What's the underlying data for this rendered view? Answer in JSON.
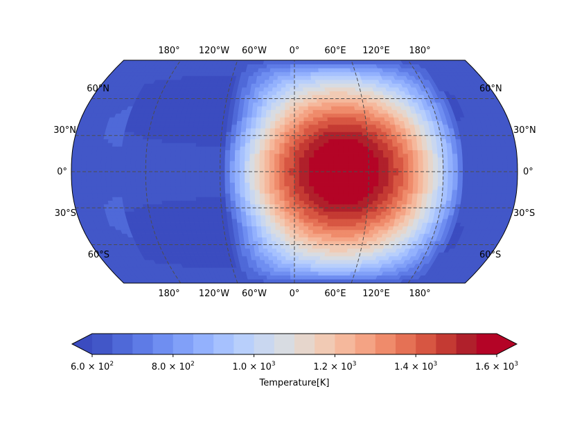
{
  "chart_data": {
    "type": "heatmap",
    "projection": "Robinson",
    "title": "",
    "colormap": "coolwarm",
    "grid": true,
    "top_lon_labels": [
      "180°",
      "120°W",
      "60°W",
      "0°",
      "60°E",
      "120°E",
      "180°"
    ],
    "bottom_lon_labels": [
      "180°",
      "120°W",
      "60°W",
      "0°",
      "60°E",
      "120°E",
      "180°"
    ],
    "left_lat_labels": [
      "60°N",
      "30°N",
      "0°",
      "30°S",
      "60°S"
    ],
    "right_lat_labels": [
      "60°N",
      "30°N",
      "0°",
      "30°S",
      "60°S"
    ],
    "field": {
      "hotspot_center_lon": 40,
      "hotspot_center_lat": 0,
      "min_value": 600,
      "max_value": 1600,
      "units": "K"
    },
    "colorbar": {
      "label": "Temperature[K]",
      "range": [
        600,
        1600
      ],
      "extend": "both",
      "n_levels": 20,
      "ticks": [
        {
          "value": 600,
          "mant": "6.0",
          "exp": "2"
        },
        {
          "value": 800,
          "mant": "8.0",
          "exp": "2"
        },
        {
          "value": 1000,
          "mant": "1.0",
          "exp": "3"
        },
        {
          "value": 1200,
          "mant": "1.2",
          "exp": "3"
        },
        {
          "value": 1400,
          "mant": "1.4",
          "exp": "3"
        },
        {
          "value": 1600,
          "mant": "1.6",
          "exp": "3"
        }
      ],
      "times_symbol": "×",
      "base": "10",
      "colors": [
        "#4257c8",
        "#4f69d8",
        "#5e7be6",
        "#6f8ef1",
        "#81a0f8",
        "#93b1fd",
        "#a6c1fe",
        "#b8cffb",
        "#c9d7f0",
        "#d8dce2",
        "#e6d6cc",
        "#f1cab4",
        "#f5b89c",
        "#f4a384",
        "#ef8b6b",
        "#e57155",
        "#d75642",
        "#c43a33",
        "#b0202b",
        "#b40426"
      ],
      "under_color": "#3b4cc0",
      "over_color": "#b40426"
    }
  }
}
